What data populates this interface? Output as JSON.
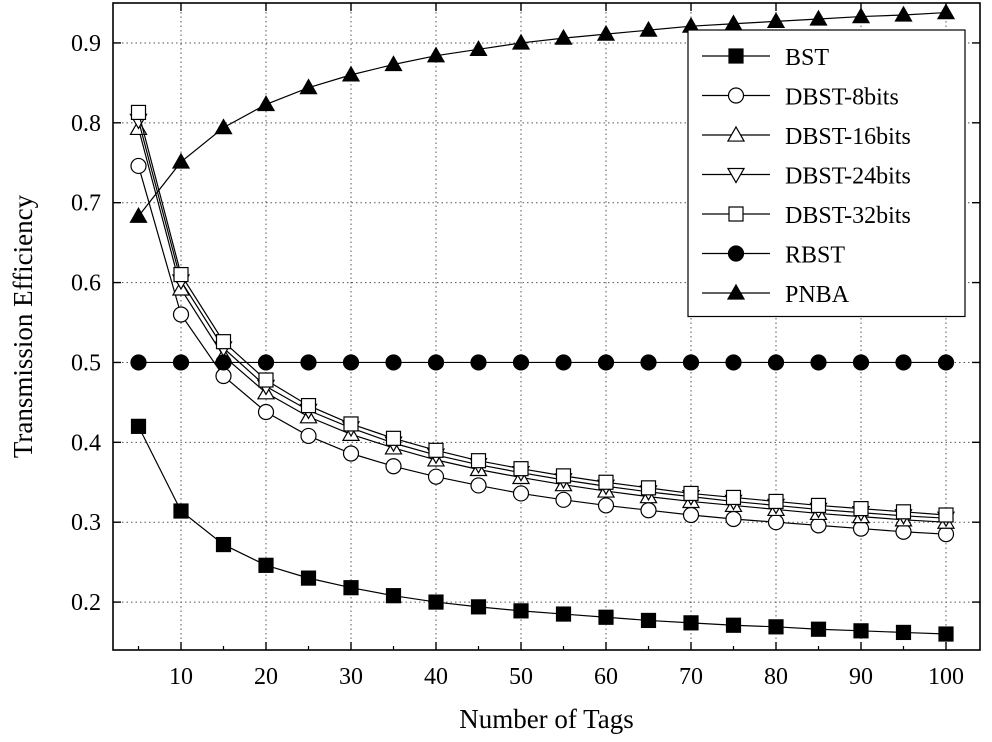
{
  "chart_data": {
    "type": "line",
    "title": "",
    "xlabel": "Number of Tags",
    "ylabel": "Transmission Efficiency",
    "xlim": [
      2,
      104
    ],
    "ylim": [
      0.14,
      0.95
    ],
    "xticks": [
      10,
      20,
      30,
      40,
      50,
      60,
      70,
      80,
      90,
      100
    ],
    "yticks": [
      0.2,
      0.3,
      0.4,
      0.5,
      0.6,
      0.7,
      0.8,
      0.9
    ],
    "xtick_labels": [
      "10",
      "20",
      "30",
      "40",
      "50",
      "60",
      "70",
      "80",
      "90",
      "100"
    ],
    "ytick_labels": [
      "0.2",
      "0.3",
      "0.4",
      "0.5",
      "0.6",
      "0.7",
      "0.8",
      "0.9"
    ],
    "grid": true,
    "legend_position": "top-right",
    "x": [
      5,
      10,
      15,
      20,
      25,
      30,
      35,
      40,
      45,
      50,
      55,
      60,
      65,
      70,
      75,
      80,
      85,
      90,
      95,
      100
    ],
    "series": [
      {
        "name": "BST",
        "marker": "square-filled",
        "values": [
          0.42,
          0.314,
          0.272,
          0.246,
          0.23,
          0.218,
          0.208,
          0.2,
          0.194,
          0.189,
          0.185,
          0.181,
          0.177,
          0.174,
          0.171,
          0.169,
          0.166,
          0.164,
          0.162,
          0.16
        ]
      },
      {
        "name": "DBST-8bits",
        "marker": "circle-open",
        "values": [
          0.746,
          0.56,
          0.483,
          0.438,
          0.408,
          0.386,
          0.37,
          0.357,
          0.346,
          0.336,
          0.328,
          0.321,
          0.315,
          0.309,
          0.304,
          0.3,
          0.296,
          0.292,
          0.288,
          0.285
        ]
      },
      {
        "name": "DBST-16bits",
        "marker": "triangle-up-open",
        "values": [
          0.793,
          0.592,
          0.508,
          0.462,
          0.432,
          0.41,
          0.393,
          0.378,
          0.366,
          0.356,
          0.347,
          0.339,
          0.332,
          0.326,
          0.321,
          0.316,
          0.311,
          0.307,
          0.303,
          0.3
        ]
      },
      {
        "name": "DBST-24bits",
        "marker": "triangle-down-open",
        "values": [
          0.803,
          0.602,
          0.518,
          0.47,
          0.44,
          0.418,
          0.399,
          0.384,
          0.372,
          0.362,
          0.353,
          0.345,
          0.338,
          0.332,
          0.326,
          0.321,
          0.316,
          0.312,
          0.308,
          0.305
        ]
      },
      {
        "name": "DBST-32bits",
        "marker": "square-open",
        "values": [
          0.813,
          0.61,
          0.526,
          0.478,
          0.446,
          0.423,
          0.405,
          0.39,
          0.377,
          0.367,
          0.358,
          0.35,
          0.343,
          0.336,
          0.331,
          0.326,
          0.321,
          0.317,
          0.313,
          0.309
        ]
      },
      {
        "name": "RBST",
        "marker": "circle-filled",
        "values": [
          0.5,
          0.5,
          0.5,
          0.5,
          0.5,
          0.5,
          0.5,
          0.5,
          0.5,
          0.5,
          0.5,
          0.5,
          0.5,
          0.5,
          0.5,
          0.5,
          0.5,
          0.5,
          0.5,
          0.5
        ]
      },
      {
        "name": "PNBA",
        "marker": "triangle-up-filled",
        "values": [
          0.683,
          0.751,
          0.794,
          0.823,
          0.844,
          0.86,
          0.873,
          0.884,
          0.892,
          0.9,
          0.906,
          0.911,
          0.916,
          0.921,
          0.924,
          0.927,
          0.93,
          0.933,
          0.935,
          0.938
        ]
      }
    ]
  }
}
